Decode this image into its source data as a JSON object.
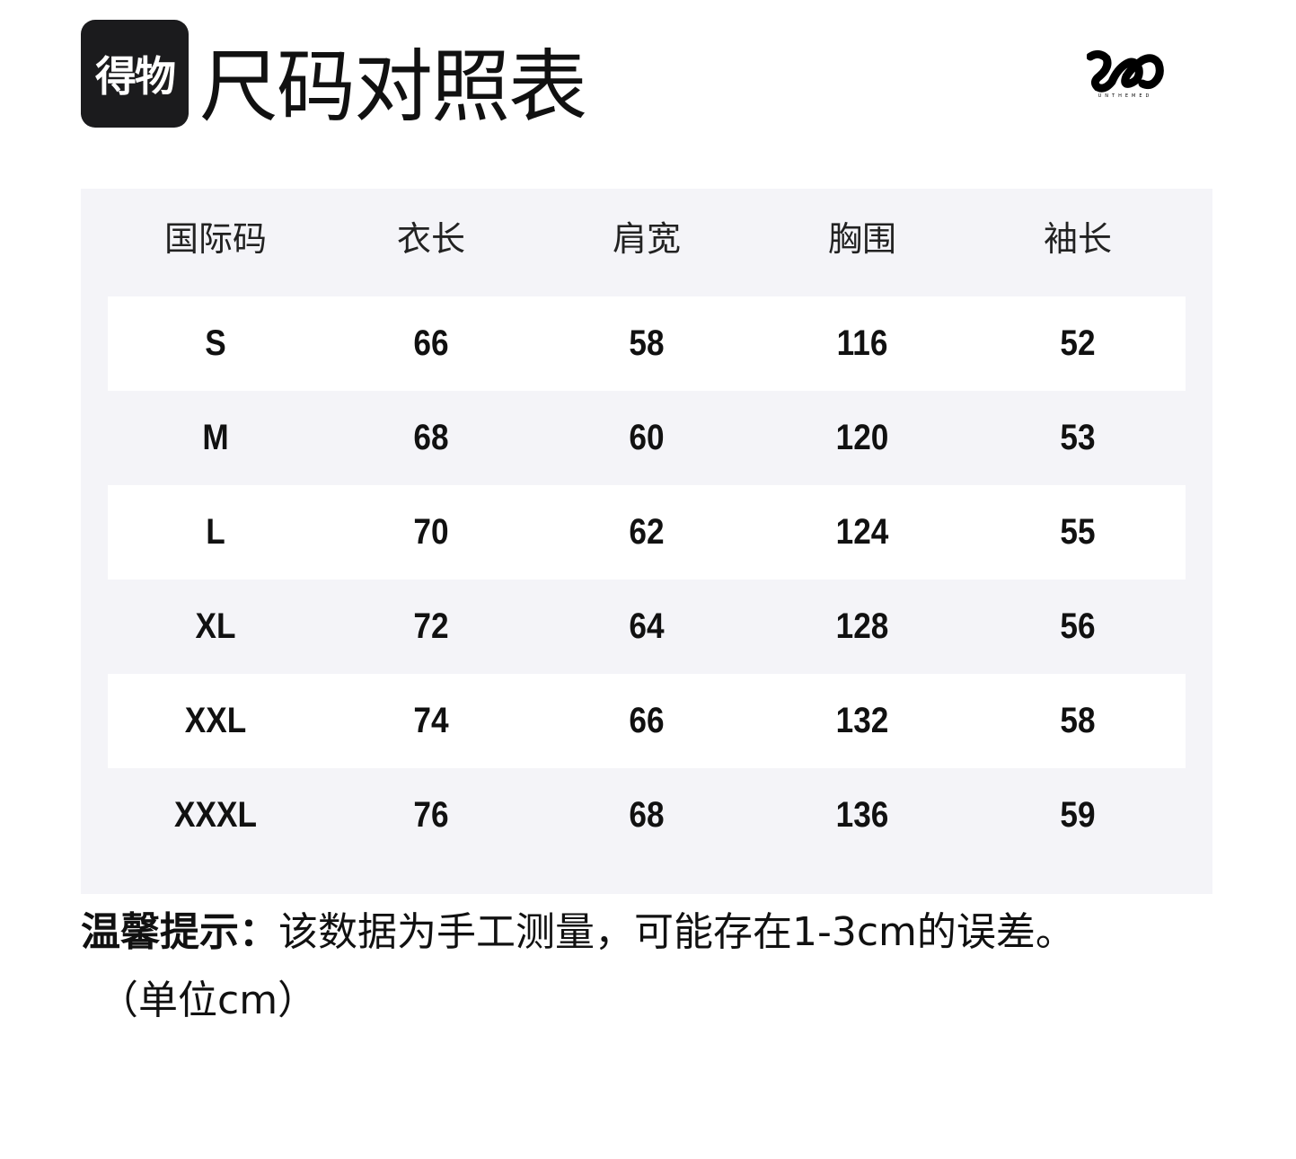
{
  "app_logo": {
    "text": "得物"
  },
  "title": "尺码对照表",
  "brand_logo": {
    "text": "UNTHEMED"
  },
  "table": {
    "headers": [
      "国际码",
      "衣长",
      "肩宽",
      "胸围",
      "袖长"
    ],
    "rows": [
      [
        "S",
        "66",
        "58",
        "116",
        "52"
      ],
      [
        "M",
        "68",
        "60",
        "120",
        "53"
      ],
      [
        "L",
        "70",
        "62",
        "124",
        "55"
      ],
      [
        "XL",
        "72",
        "64",
        "128",
        "56"
      ],
      [
        "XXL",
        "74",
        "66",
        "132",
        "58"
      ],
      [
        "XXXL",
        "76",
        "68",
        "136",
        "59"
      ]
    ]
  },
  "note": {
    "label": "温馨提示：",
    "text": "该数据为手工测量，可能存在1-3cm的误差。",
    "unit": "（单位cm）"
  },
  "colors": {
    "panel": "#f4f4f8",
    "row_alt": "#ffffff",
    "logo_bg": "#1b1b1d"
  }
}
